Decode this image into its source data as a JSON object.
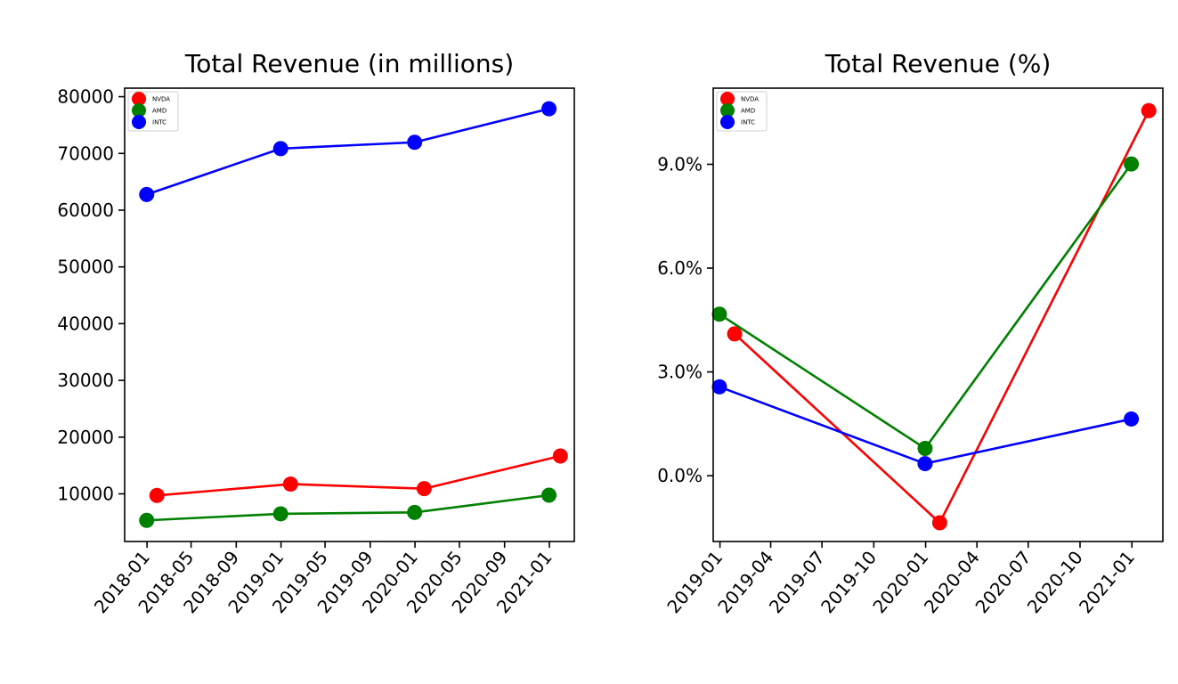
{
  "chart_data": [
    {
      "type": "line",
      "title": "Total Revenue (in millions)",
      "xlabel": "",
      "ylabel": "",
      "x_tick_labels": [
        "2018-01",
        "2018-05",
        "2018-09",
        "2019-01",
        "2019-05",
        "2019-09",
        "2020-01",
        "2020-05",
        "2020-09",
        "2021-01"
      ],
      "y_tick_labels": [
        "10000",
        "20000",
        "30000",
        "40000",
        "50000",
        "60000",
        "70000",
        "80000"
      ],
      "xlim": [
        "2017-11-01",
        "2021-03-10"
      ],
      "ylim": [
        1600,
        81500
      ],
      "legend": {
        "location": "top-left",
        "entries": [
          "NVDA",
          "AMD",
          "INTC"
        ]
      },
      "grid": false,
      "series": [
        {
          "name": "NVDA",
          "color": "#ff0000",
          "x": [
            "2018-01-28",
            "2019-01-27",
            "2020-01-26",
            "2021-01-31"
          ],
          "y": [
            9714,
            11716,
            10918,
            16675
          ]
        },
        {
          "name": "AMD",
          "color": "#008000",
          "x": [
            "2017-12-31",
            "2018-12-31",
            "2019-12-31",
            "2020-12-31"
          ],
          "y": [
            5329,
            6475,
            6731,
            9763
          ]
        },
        {
          "name": "INTC",
          "color": "#0000ff",
          "x": [
            "2017-12-31",
            "2018-12-31",
            "2019-12-31",
            "2020-12-31"
          ],
          "y": [
            62761,
            70848,
            71965,
            77867
          ]
        }
      ]
    },
    {
      "type": "line",
      "title": "Total Revenue (%)",
      "xlabel": "",
      "ylabel": "",
      "x_tick_labels": [
        "2019-01",
        "2019-04",
        "2019-07",
        "2019-10",
        "2020-01",
        "2020-04",
        "2020-07",
        "2020-10",
        "2021-01"
      ],
      "y_tick_labels": [
        "0.0%",
        "3.0%",
        "6.0%",
        "9.0%"
      ],
      "xlim": [
        "2018-12-20",
        "2021-02-25"
      ],
      "ylim": [
        -1.9,
        11.2
      ],
      "legend": {
        "location": "top-left",
        "entries": [
          "NVDA",
          "AMD",
          "INTC"
        ]
      },
      "grid": false,
      "series": [
        {
          "name": "NVDA",
          "color": "#ff0000",
          "x": [
            "2019-01-27",
            "2020-01-26",
            "2021-01-31"
          ],
          "y": [
            4.1,
            -1.36,
            10.55
          ]
        },
        {
          "name": "AMD",
          "color": "#008000",
          "x": [
            "2018-12-31",
            "2019-12-31",
            "2020-12-31"
          ],
          "y": [
            4.67,
            0.79,
            9.01
          ]
        },
        {
          "name": "INTC",
          "color": "#0000ff",
          "x": [
            "2018-12-31",
            "2019-12-31",
            "2020-12-31"
          ],
          "y": [
            2.57,
            0.35,
            1.64
          ]
        }
      ]
    }
  ]
}
